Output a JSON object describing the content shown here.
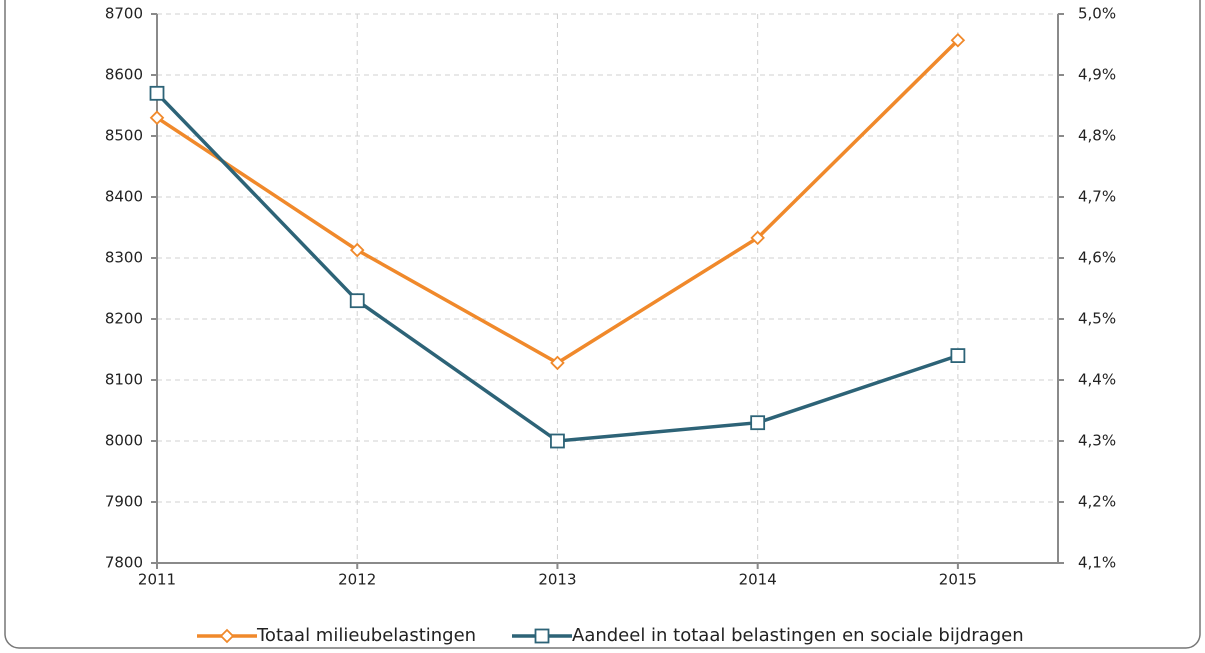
{
  "chart_data": {
    "type": "line",
    "x": [
      2011,
      2012,
      2013,
      2014,
      2015
    ],
    "xlim": [
      2011,
      2015.5
    ],
    "xticks": [
      2011,
      2012,
      2013,
      2014,
      2015
    ],
    "ylim": [
      7800,
      8700
    ],
    "yticks": [
      7800,
      7900,
      8000,
      8100,
      8200,
      8300,
      8400,
      8500,
      8600,
      8700
    ],
    "y2lim": [
      4.1,
      5.0
    ],
    "y2ticks": [
      {
        "value": 4.1,
        "label": "4,1%"
      },
      {
        "value": 4.2,
        "label": "4,2%"
      },
      {
        "value": 4.3,
        "label": "4,3%"
      },
      {
        "value": 4.4,
        "label": "4,4%"
      },
      {
        "value": 4.5,
        "label": "4,5%"
      },
      {
        "value": 4.6,
        "label": "4,6%"
      },
      {
        "value": 4.7,
        "label": "4,7%"
      },
      {
        "value": 4.8,
        "label": "4,8%"
      },
      {
        "value": 4.9,
        "label": "4,9%"
      },
      {
        "value": 5.0,
        "label": "5,0%"
      }
    ],
    "grid": true,
    "series": [
      {
        "name": "Totaal milieubelastingen",
        "color": "#f0892b",
        "marker": "diamond",
        "values": [
          8530,
          8313,
          8128,
          8333,
          8657
        ]
      },
      {
        "name": "Aandeel in totaal belastingen en sociale bijdragen",
        "color": "#2d6377",
        "marker": "square",
        "axis": "y2",
        "values": [
          4.87,
          4.53,
          4.3,
          4.33,
          4.44
        ]
      }
    ]
  }
}
